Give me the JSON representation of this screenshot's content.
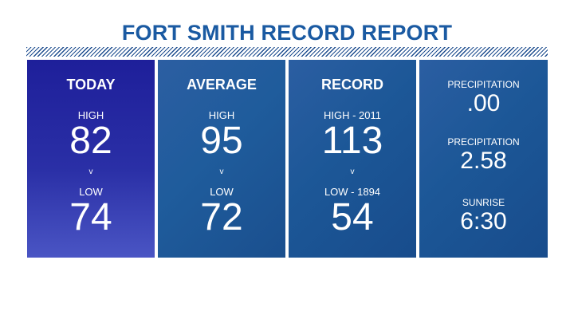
{
  "title": "FORT SMITH RECORD REPORT",
  "today": {
    "heading": "TODAY",
    "high_label": "HIGH",
    "high": "82",
    "sep": "v",
    "low_label": "LOW",
    "low": "74"
  },
  "average": {
    "heading": "AVERAGE",
    "high_label": "HIGH",
    "high": "95",
    "sep": "v",
    "low_label": "LOW",
    "low": "72"
  },
  "record": {
    "heading": "RECORD",
    "high_label": "HIGH  - 2011",
    "high": "113",
    "sep": "v",
    "low_label": "LOW  - 1894",
    "low": "54"
  },
  "stats": {
    "precip_today_label": "PRECIPITATION",
    "precip_today": ".00",
    "precip_month_label": "PRECIPITATION",
    "precip_month": "2.58",
    "sunrise_label": "SUNRISE",
    "sunrise": "6:30"
  },
  "colors": {
    "title": "#1a5aa2",
    "today_panel": "#2328a0",
    "panel": "#1c5797"
  }
}
